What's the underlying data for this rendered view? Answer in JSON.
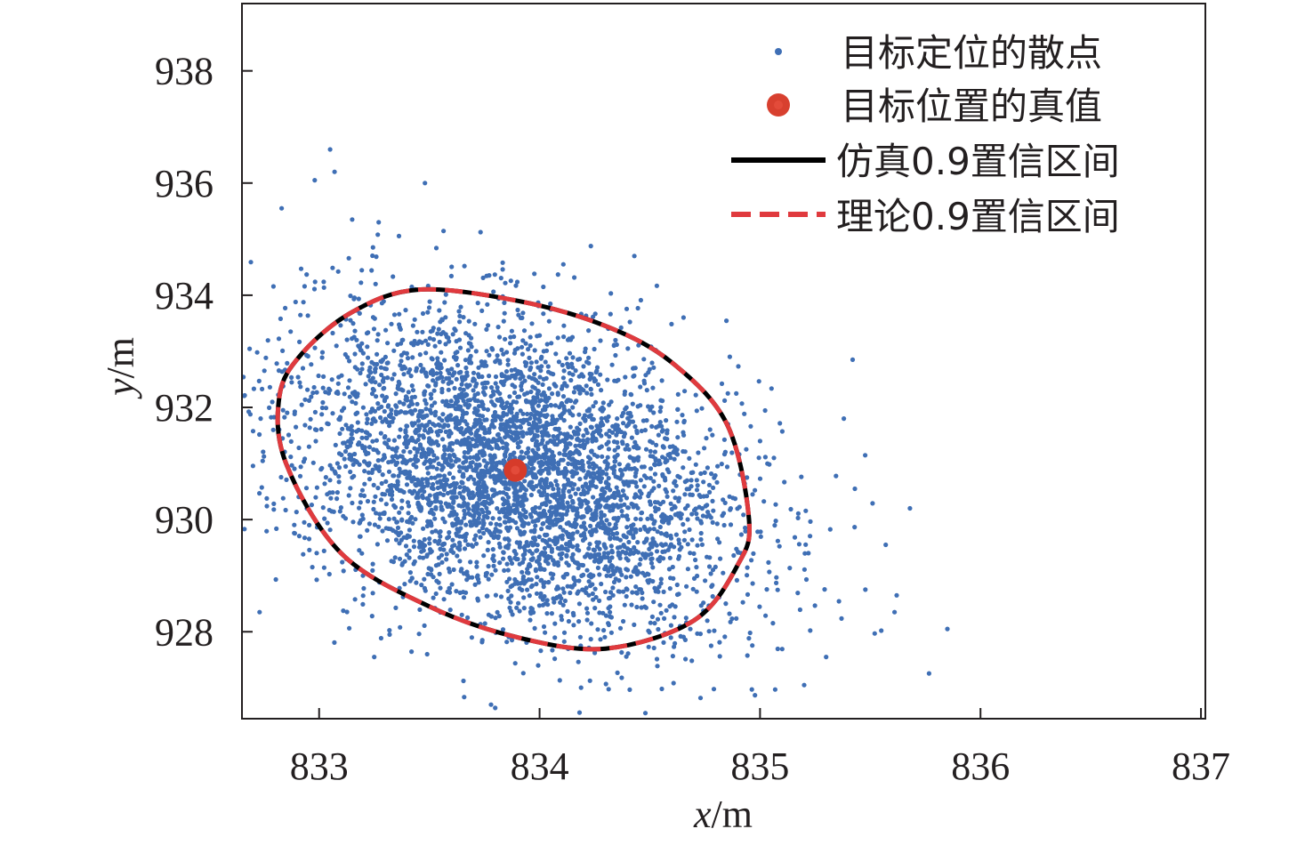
{
  "chart_data": {
    "type": "scatter",
    "title": "",
    "xlabel": "x/m",
    "ylabel": "y/m",
    "xlim": [
      832.65,
      837.02
    ],
    "ylim": [
      926.45,
      939.2
    ],
    "x_ticks": [
      "833",
      "834",
      "835",
      "836",
      "837"
    ],
    "y_ticks": [
      "928",
      "930",
      "932",
      "934",
      "936",
      "938"
    ],
    "grid": false,
    "legend_position": "top-right",
    "scatter": {
      "name": "目标定位的散点",
      "color": "#3f6fb5",
      "count": 4200,
      "center": [
        833.9,
        930.85
      ],
      "std": [
        0.5,
        1.4
      ],
      "correlation": -0.35,
      "outliers": [
        [
          833.05,
          936.6
        ],
        [
          833.07,
          936.2
        ],
        [
          832.98,
          936.05
        ],
        [
          833.48,
          936.0
        ],
        [
          833.15,
          935.35
        ],
        [
          833.27,
          935.3
        ],
        [
          832.83,
          935.55
        ],
        [
          834.43,
          934.7
        ],
        [
          835.42,
          932.85
        ],
        [
          835.38,
          931.8
        ],
        [
          835.43,
          930.55
        ],
        [
          835.68,
          930.2
        ],
        [
          835.57,
          929.55
        ],
        [
          835.62,
          928.65
        ],
        [
          835.61,
          928.35
        ],
        [
          835.85,
          928.05
        ],
        [
          835.52,
          927.97
        ],
        [
          835.55,
          928.02
        ],
        [
          835.3,
          927.55
        ],
        [
          835.2,
          927.05
        ],
        [
          834.73,
          926.82
        ],
        [
          834.48,
          926.55
        ],
        [
          833.78,
          926.7
        ],
        [
          833.25,
          927.55
        ],
        [
          832.73,
          928.35
        ],
        [
          833.32,
          927.95
        ]
      ]
    },
    "true_position": {
      "name": "目标位置的真值",
      "x": 833.89,
      "y": 930.88,
      "color": "#d63b2a"
    },
    "confidence_ellipses": [
      {
        "name": "仿真0.9置信区间",
        "style": "solid",
        "color": "#000000",
        "points": [
          [
            833.45,
            934.1
          ],
          [
            833.9,
            933.9
          ],
          [
            834.3,
            933.45
          ],
          [
            834.6,
            932.8
          ],
          [
            834.85,
            931.7
          ],
          [
            834.95,
            930.0
          ],
          [
            834.9,
            929.2
          ],
          [
            834.7,
            928.2
          ],
          [
            834.3,
            927.7
          ],
          [
            833.9,
            927.9
          ],
          [
            833.5,
            928.45
          ],
          [
            833.1,
            929.4
          ],
          [
            832.85,
            931.0
          ],
          [
            832.82,
            932.2
          ],
          [
            832.92,
            932.95
          ],
          [
            833.15,
            933.7
          ],
          [
            833.45,
            934.1
          ]
        ]
      },
      {
        "name": "理论0.9置信区间",
        "style": "dashed",
        "color": "#e03a3e",
        "points": [
          [
            833.45,
            934.1
          ],
          [
            833.9,
            933.9
          ],
          [
            834.3,
            933.45
          ],
          [
            834.6,
            932.8
          ],
          [
            834.85,
            931.7
          ],
          [
            834.95,
            930.0
          ],
          [
            834.9,
            929.2
          ],
          [
            834.7,
            928.2
          ],
          [
            834.3,
            927.7
          ],
          [
            833.9,
            927.9
          ],
          [
            833.5,
            928.45
          ],
          [
            833.1,
            929.4
          ],
          [
            832.85,
            931.0
          ],
          [
            832.82,
            932.2
          ],
          [
            832.92,
            932.95
          ],
          [
            833.15,
            933.7
          ],
          [
            833.45,
            934.1
          ]
        ]
      }
    ]
  }
}
